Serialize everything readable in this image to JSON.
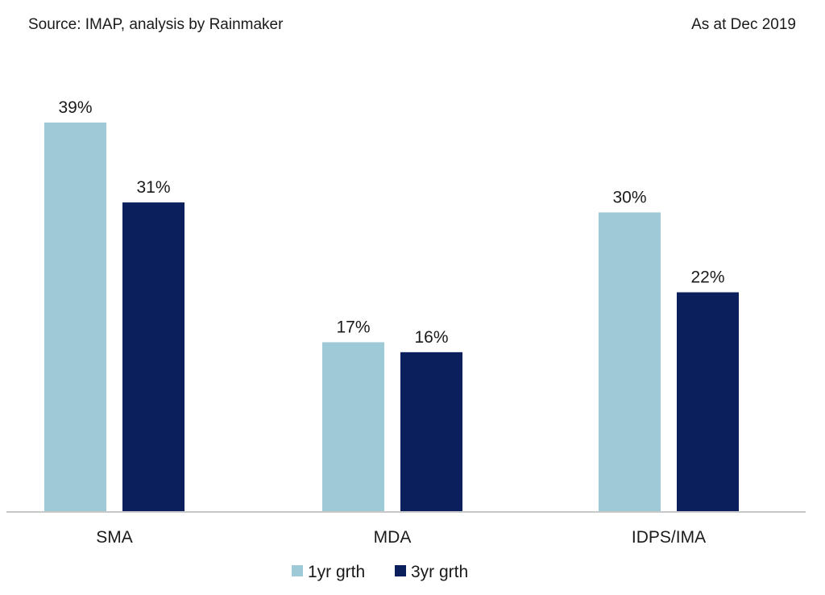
{
  "header": {
    "source": "Source: IMAP, analysis by Rainmaker",
    "as_at": "As at Dec 2019"
  },
  "chart_data": {
    "type": "bar",
    "categories": [
      "SMA",
      "MDA",
      "IDPS/IMA"
    ],
    "series": [
      {
        "name": "1yr grth",
        "values": [
          39,
          17,
          30
        ],
        "color": "#9ecad8"
      },
      {
        "name": "3yr grth",
        "values": [
          31,
          16,
          22
        ],
        "color": "#0b1f5c"
      }
    ],
    "value_suffix": "%",
    "ylim": [
      0,
      39
    ],
    "grid": false,
    "legend_position": "bottom-center",
    "axis_color": "#c8c8c8"
  }
}
